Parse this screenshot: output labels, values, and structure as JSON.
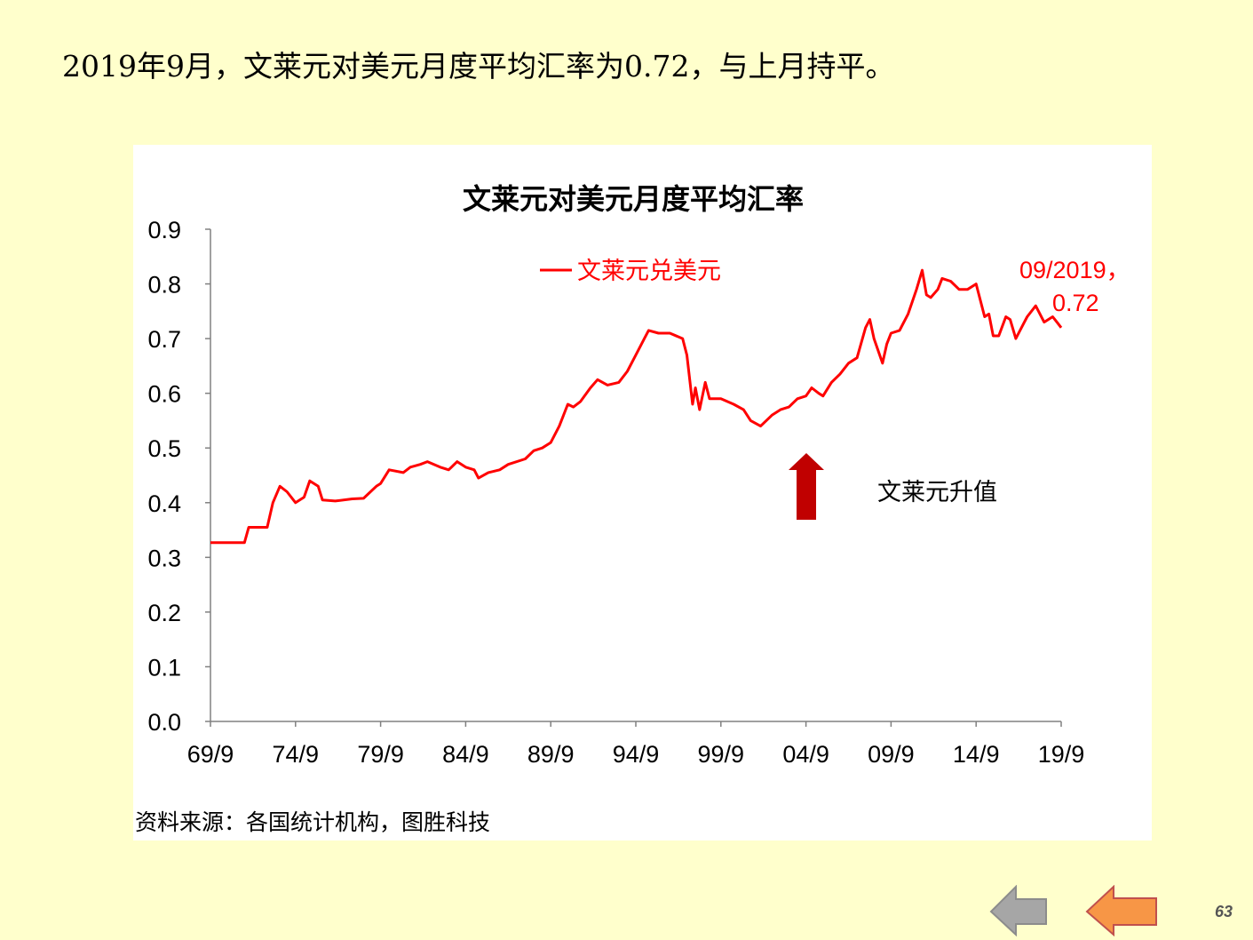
{
  "headline": "2019年9月，文莱元对美元月度平均汇率为0.72，与上月持平。",
  "source": "资料来源：各国统计机构，图胜科技",
  "page_number": "63",
  "nav": {
    "back_icon": "arrow-left-gray-icon",
    "prev_icon": "arrow-left-orange-icon"
  },
  "colors": {
    "background": "#FFFFCC",
    "series": "#FF0000",
    "up_arrow": "#C00000",
    "nav_gray": "#A6A6A6",
    "nav_orange": "#F79646"
  },
  "chart_data": {
    "type": "line",
    "title": "文莱元对美元月度平均汇率",
    "xlabel": "",
    "ylabel": "",
    "ylim": [
      0,
      0.9
    ],
    "yticks": [
      "0.0",
      "0.1",
      "0.2",
      "0.3",
      "0.4",
      "0.5",
      "0.6",
      "0.7",
      "0.8",
      "0.9"
    ],
    "xticks": [
      "69/9",
      "74/9",
      "79/9",
      "84/9",
      "89/9",
      "94/9",
      "99/9",
      "04/9",
      "09/9",
      "14/9",
      "19/9"
    ],
    "grid": false,
    "legend": "top-center",
    "series": [
      {
        "name": "文莱元兑美元",
        "color": "#FF0000",
        "points": [
          [
            "1969/09",
            0.327
          ],
          [
            "1971/09",
            0.327
          ],
          [
            "1971/12",
            0.355
          ],
          [
            "1973/01",
            0.355
          ],
          [
            "1973/05",
            0.4
          ],
          [
            "1973/10",
            0.43
          ],
          [
            "1974/03",
            0.42
          ],
          [
            "1974/09",
            0.4
          ],
          [
            "1975/03",
            0.41
          ],
          [
            "1975/07",
            0.44
          ],
          [
            "1976/01",
            0.43
          ],
          [
            "1976/04",
            0.405
          ],
          [
            "1977/01",
            0.403
          ],
          [
            "1978/01",
            0.407
          ],
          [
            "1978/09",
            0.408
          ],
          [
            "1979/06",
            0.43
          ],
          [
            "1979/09",
            0.435
          ],
          [
            "1980/03",
            0.46
          ],
          [
            "1981/01",
            0.455
          ],
          [
            "1981/06",
            0.465
          ],
          [
            "1982/01",
            0.47
          ],
          [
            "1982/06",
            0.475
          ],
          [
            "1983/03",
            0.465
          ],
          [
            "1983/09",
            0.46
          ],
          [
            "1984/03",
            0.475
          ],
          [
            "1984/09",
            0.465
          ],
          [
            "1985/03",
            0.46
          ],
          [
            "1985/06",
            0.445
          ],
          [
            "1986/01",
            0.455
          ],
          [
            "1986/09",
            0.46
          ],
          [
            "1987/03",
            0.47
          ],
          [
            "1988/03",
            0.48
          ],
          [
            "1988/09",
            0.495
          ],
          [
            "1989/03",
            0.5
          ],
          [
            "1989/09",
            0.51
          ],
          [
            "1990/03",
            0.54
          ],
          [
            "1990/09",
            0.58
          ],
          [
            "1991/01",
            0.575
          ],
          [
            "1991/06",
            0.585
          ],
          [
            "1992/01",
            0.61
          ],
          [
            "1992/06",
            0.625
          ],
          [
            "1993/01",
            0.615
          ],
          [
            "1993/09",
            0.62
          ],
          [
            "1994/03",
            0.64
          ],
          [
            "1994/09",
            0.67
          ],
          [
            "1995/03",
            0.7
          ],
          [
            "1995/06",
            0.715
          ],
          [
            "1996/01",
            0.71
          ],
          [
            "1996/09",
            0.71
          ],
          [
            "1997/06",
            0.7
          ],
          [
            "1997/09",
            0.67
          ],
          [
            "1998/01",
            0.58
          ],
          [
            "1998/03",
            0.61
          ],
          [
            "1998/06",
            0.57
          ],
          [
            "1998/10",
            0.62
          ],
          [
            "1999/01",
            0.59
          ],
          [
            "1999/09",
            0.59
          ],
          [
            "2000/06",
            0.58
          ],
          [
            "2001/01",
            0.57
          ],
          [
            "2001/06",
            0.55
          ],
          [
            "2002/01",
            0.54
          ],
          [
            "2002/09",
            0.56
          ],
          [
            "2003/03",
            0.57
          ],
          [
            "2003/09",
            0.575
          ],
          [
            "2004/03",
            0.59
          ],
          [
            "2004/09",
            0.595
          ],
          [
            "2005/01",
            0.61
          ],
          [
            "2005/06",
            0.6
          ],
          [
            "2005/09",
            0.595
          ],
          [
            "2006/03",
            0.62
          ],
          [
            "2006/09",
            0.635
          ],
          [
            "2007/03",
            0.655
          ],
          [
            "2007/09",
            0.665
          ],
          [
            "2008/03",
            0.72
          ],
          [
            "2008/06",
            0.735
          ],
          [
            "2008/09",
            0.7
          ],
          [
            "2009/03",
            0.655
          ],
          [
            "2009/06",
            0.69
          ],
          [
            "2009/09",
            0.71
          ],
          [
            "2010/03",
            0.715
          ],
          [
            "2010/09",
            0.745
          ],
          [
            "2011/03",
            0.79
          ],
          [
            "2011/07",
            0.825
          ],
          [
            "2011/10",
            0.78
          ],
          [
            "2012/01",
            0.775
          ],
          [
            "2012/06",
            0.79
          ],
          [
            "2012/09",
            0.81
          ],
          [
            "2013/03",
            0.805
          ],
          [
            "2013/09",
            0.79
          ],
          [
            "2014/03",
            0.79
          ],
          [
            "2014/09",
            0.8
          ],
          [
            "2015/03",
            0.74
          ],
          [
            "2015/06",
            0.745
          ],
          [
            "2015/09",
            0.705
          ],
          [
            "2016/01",
            0.705
          ],
          [
            "2016/06",
            0.74
          ],
          [
            "2016/09",
            0.735
          ],
          [
            "2017/01",
            0.7
          ],
          [
            "2017/06",
            0.725
          ],
          [
            "2017/09",
            0.74
          ],
          [
            "2018/03",
            0.76
          ],
          [
            "2018/09",
            0.73
          ],
          [
            "2019/03",
            0.74
          ],
          [
            "2019/06",
            0.73
          ],
          [
            "2019/09",
            0.72
          ]
        ]
      }
    ],
    "annotations": [
      {
        "text_line1": "09/2019，",
        "text_line2": "0.72",
        "color": "#FF0000"
      },
      {
        "text": "文莱元升值",
        "color": "#000000",
        "arrow": "up"
      }
    ]
  }
}
